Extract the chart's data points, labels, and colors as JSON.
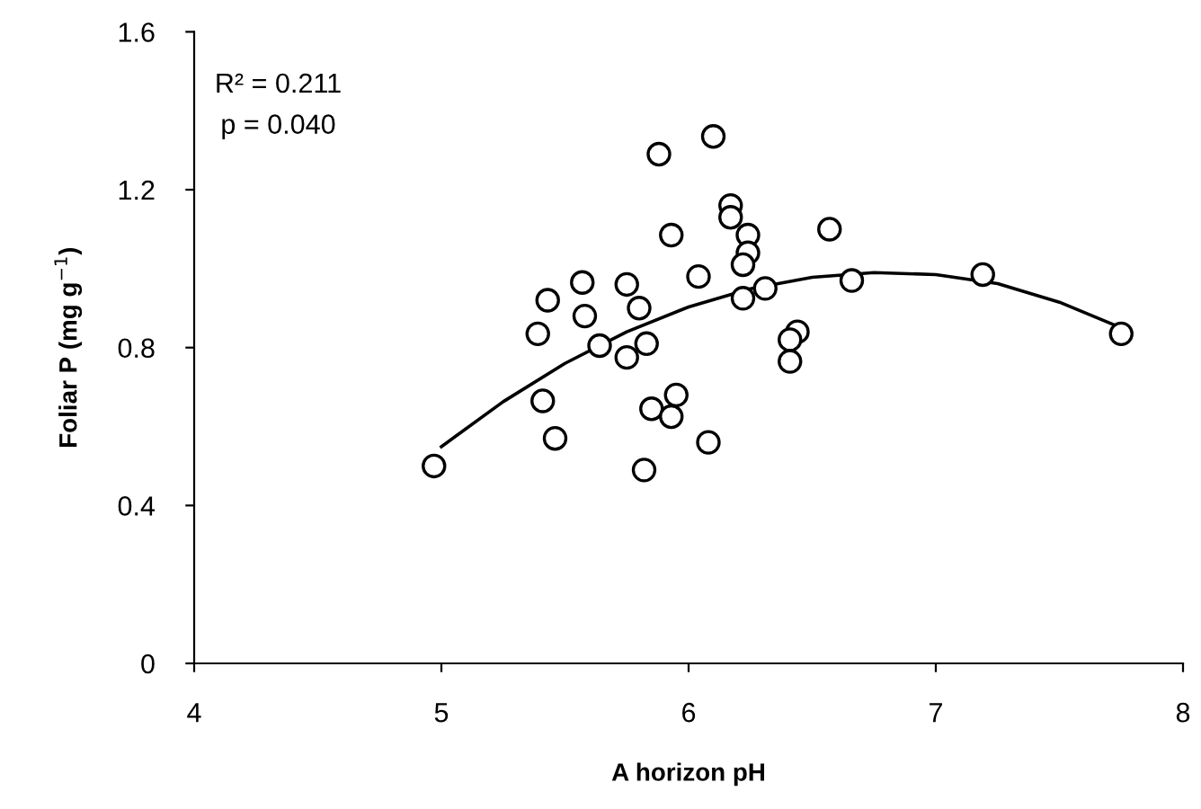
{
  "chart_data": {
    "type": "scatter",
    "xlabel": "A horizon pH",
    "ylabel": "Foliar P (mg g$^{−1}$)",
    "xlim": [
      4,
      8
    ],
    "xticks": [
      4,
      5,
      6,
      7,
      8
    ],
    "ylim": [
      0,
      1.6
    ],
    "yticks": [
      0,
      0.4,
      0.8,
      1.2,
      1.6
    ],
    "grid": false,
    "legend": false,
    "annotations": [
      "R² = 0.211",
      "p = 0.040"
    ],
    "series": [
      {
        "color": "#000000",
        "marker": "circle",
        "x": [
          4.97,
          5.88,
          6.1,
          6.17,
          6.17,
          5.93,
          6.24,
          6.24,
          6.22,
          6.57,
          6.04,
          5.43,
          5.57,
          5.75,
          5.8,
          5.58,
          5.39,
          6.31,
          6.22,
          5.64,
          5.83,
          5.75,
          6.44,
          6.41,
          6.41,
          5.41,
          5.95,
          5.85,
          5.93,
          5.46,
          6.08,
          5.82,
          6.66,
          7.19,
          7.75
        ],
        "values": [
          0.5,
          1.29,
          1.335,
          1.16,
          1.13,
          1.085,
          1.085,
          1.04,
          1.01,
          1.1,
          0.98,
          0.92,
          0.965,
          0.96,
          0.9,
          0.88,
          0.835,
          0.95,
          0.925,
          0.805,
          0.81,
          0.775,
          0.84,
          0.82,
          0.765,
          0.665,
          0.68,
          0.645,
          0.625,
          0.57,
          0.56,
          0.49,
          0.97,
          0.985,
          0.835
        ]
      },
      {
        "type": "line",
        "color": "#000000",
        "marker": "none",
        "line_style": "solid",
        "x": [
          5.0,
          5.25,
          5.5,
          5.75,
          6.0,
          6.25,
          6.5,
          6.75,
          7.0,
          7.25,
          7.5,
          7.75
        ],
        "values": [
          0.549,
          0.663,
          0.76,
          0.84,
          0.903,
          0.949,
          0.978,
          0.99,
          0.985,
          0.962,
          0.915,
          0.85
        ]
      }
    ]
  }
}
